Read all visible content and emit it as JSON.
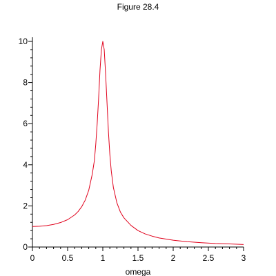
{
  "chart_data": {
    "type": "line",
    "title": "Figure 28.4",
    "xlabel": "omega",
    "ylabel": "",
    "xlim": [
      0,
      3
    ],
    "ylim": [
      0,
      10
    ],
    "x_ticks": [
      0,
      0.5,
      1,
      1.5,
      2,
      2.5,
      3
    ],
    "x_tick_labels": [
      "0",
      "0.5",
      "1",
      "1.5",
      "2",
      "2.5",
      "3"
    ],
    "y_ticks": [
      0,
      2,
      4,
      6,
      8,
      10
    ],
    "y_tick_labels": [
      "0",
      "2",
      "4",
      "6",
      "8",
      "10"
    ],
    "grid": false,
    "legend": "none",
    "series": [
      {
        "color": "#e0001b",
        "points": [
          [
            0,
            1.0
          ],
          [
            0.1,
            1.01
          ],
          [
            0.2,
            1.04
          ],
          [
            0.3,
            1.1
          ],
          [
            0.4,
            1.19
          ],
          [
            0.5,
            1.33
          ],
          [
            0.6,
            1.56
          ],
          [
            0.65,
            1.73
          ],
          [
            0.7,
            1.96
          ],
          [
            0.75,
            2.28
          ],
          [
            0.8,
            2.76
          ],
          [
            0.85,
            3.54
          ],
          [
            0.88,
            4.2
          ],
          [
            0.9,
            5.0
          ],
          [
            0.92,
            6.0
          ],
          [
            0.94,
            7.2
          ],
          [
            0.96,
            8.6
          ],
          [
            0.98,
            9.6
          ],
          [
            1.0,
            10.0
          ],
          [
            1.02,
            9.6
          ],
          [
            1.04,
            8.4
          ],
          [
            1.06,
            7.0
          ],
          [
            1.08,
            5.6
          ],
          [
            1.1,
            4.5
          ],
          [
            1.12,
            3.7
          ],
          [
            1.15,
            2.9
          ],
          [
            1.2,
            2.15
          ],
          [
            1.25,
            1.7
          ],
          [
            1.3,
            1.42
          ],
          [
            1.4,
            1.05
          ],
          [
            1.5,
            0.8
          ],
          [
            1.6,
            0.64
          ],
          [
            1.7,
            0.53
          ],
          [
            1.8,
            0.44
          ],
          [
            2.0,
            0.33
          ],
          [
            2.2,
            0.26
          ],
          [
            2.4,
            0.21
          ],
          [
            2.6,
            0.17
          ],
          [
            2.8,
            0.15
          ],
          [
            3.0,
            0.12
          ]
        ]
      }
    ]
  }
}
